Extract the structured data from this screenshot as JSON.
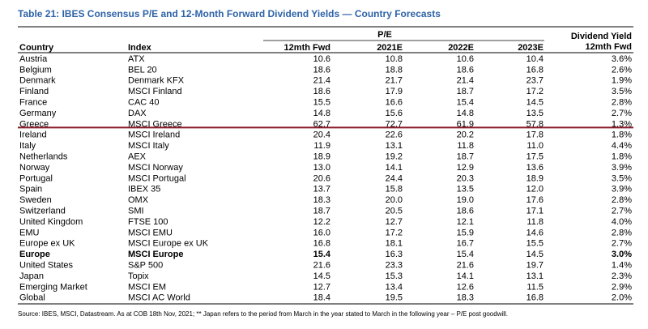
{
  "title": "Table 21: IBES Consensus P/E and 12-Month Forward Dividend Yields — Country Forecasts",
  "table": {
    "group_header": "P/E",
    "columns": [
      "Country",
      "Index",
      "12mth Fwd",
      "2021E",
      "2022E",
      "2023E"
    ],
    "dividend_header": [
      "Dividend Yield",
      "12mth Fwd"
    ],
    "rows": [
      {
        "cells": [
          "Austria",
          "ATX",
          "10.6",
          "10.8",
          "10.6",
          "10.4",
          "3.6%"
        ]
      },
      {
        "cells": [
          "Belgium",
          "BEL 20",
          "18.6",
          "18.8",
          "18.6",
          "16.8",
          "2.6%"
        ]
      },
      {
        "cells": [
          "Denmark",
          "Denmark KFX",
          "21.4",
          "21.7",
          "21.4",
          "23.7",
          "1.9%"
        ]
      },
      {
        "cells": [
          "Finland",
          "MSCI Finland",
          "18.6",
          "17.9",
          "18.7",
          "17.2",
          "3.5%"
        ]
      },
      {
        "cells": [
          "France",
          "CAC 40",
          "15.5",
          "16.6",
          "15.4",
          "14.5",
          "2.8%"
        ]
      },
      {
        "cells": [
          "Germany",
          "DAX",
          "14.8",
          "15.6",
          "14.8",
          "13.5",
          "2.7%"
        ]
      },
      {
        "cells": [
          "Greece",
          "MSCI Greece",
          "62.7",
          "72.7",
          "61.9",
          "57.8",
          "1.3%"
        ],
        "marked": true
      },
      {
        "cells": [
          "Ireland",
          "MSCI Ireland",
          "20.4",
          "22.6",
          "20.2",
          "17.8",
          "1.8%"
        ]
      },
      {
        "cells": [
          "Italy",
          "MSCI Italy",
          "11.9",
          "13.1",
          "11.8",
          "11.0",
          "4.4%"
        ]
      },
      {
        "cells": [
          "Netherlands",
          "AEX",
          "18.9",
          "19.2",
          "18.7",
          "17.5",
          "1.8%"
        ]
      },
      {
        "cells": [
          "Norway",
          "MSCI Norway",
          "13.0",
          "14.1",
          "12.9",
          "13.6",
          "3.9%"
        ]
      },
      {
        "cells": [
          "Portugal",
          "MSCI Portugal",
          "20.6",
          "24.4",
          "20.3",
          "18.9",
          "3.5%"
        ]
      },
      {
        "cells": [
          "Spain",
          "IBEX 35",
          "13.7",
          "15.8",
          "13.5",
          "12.0",
          "3.9%"
        ]
      },
      {
        "cells": [
          "Sweden",
          "OMX",
          "18.3",
          "20.0",
          "19.0",
          "17.6",
          "2.8%"
        ]
      },
      {
        "cells": [
          "Switzerland",
          "SMI",
          "18.7",
          "20.5",
          "18.6",
          "17.1",
          "2.7%"
        ]
      },
      {
        "cells": [
          "United Kingdom",
          "FTSE 100",
          "12.2",
          "12.7",
          "12.1",
          "11.8",
          "4.0%"
        ]
      },
      {
        "cells": [
          "EMU",
          "MSCI EMU",
          "16.0",
          "17.2",
          "15.9",
          "14.6",
          "2.8%"
        ]
      },
      {
        "cells": [
          "Europe ex UK",
          "MSCI Europe ex UK",
          "16.8",
          "18.1",
          "16.7",
          "15.5",
          "2.7%"
        ]
      },
      {
        "cells": [
          "Europe",
          "MSCI Europe",
          "15.4",
          "16.3",
          "15.4",
          "14.5",
          "3.0%"
        ],
        "bold": true
      },
      {
        "cells": [
          "United States",
          "S&P 500",
          "21.6",
          "23.3",
          "21.6",
          "19.7",
          "1.4%"
        ]
      },
      {
        "cells": [
          "Japan",
          "Topix",
          "14.5",
          "15.3",
          "14.1",
          "13.1",
          "2.3%"
        ]
      },
      {
        "cells": [
          "Emerging Market",
          "MSCI EM",
          "12.7",
          "13.4",
          "12.6",
          "11.5",
          "2.9%"
        ]
      },
      {
        "cells": [
          "Global",
          "MSCI AC World",
          "18.4",
          "19.5",
          "18.3",
          "16.8",
          "2.0%"
        ]
      }
    ]
  },
  "source": "Source: IBES, MSCI, Datastream. As at COB 18th Nov, 2021; ** Japan refers to the period from March in the year stated to March in the following year – P/E post goodwill."
}
